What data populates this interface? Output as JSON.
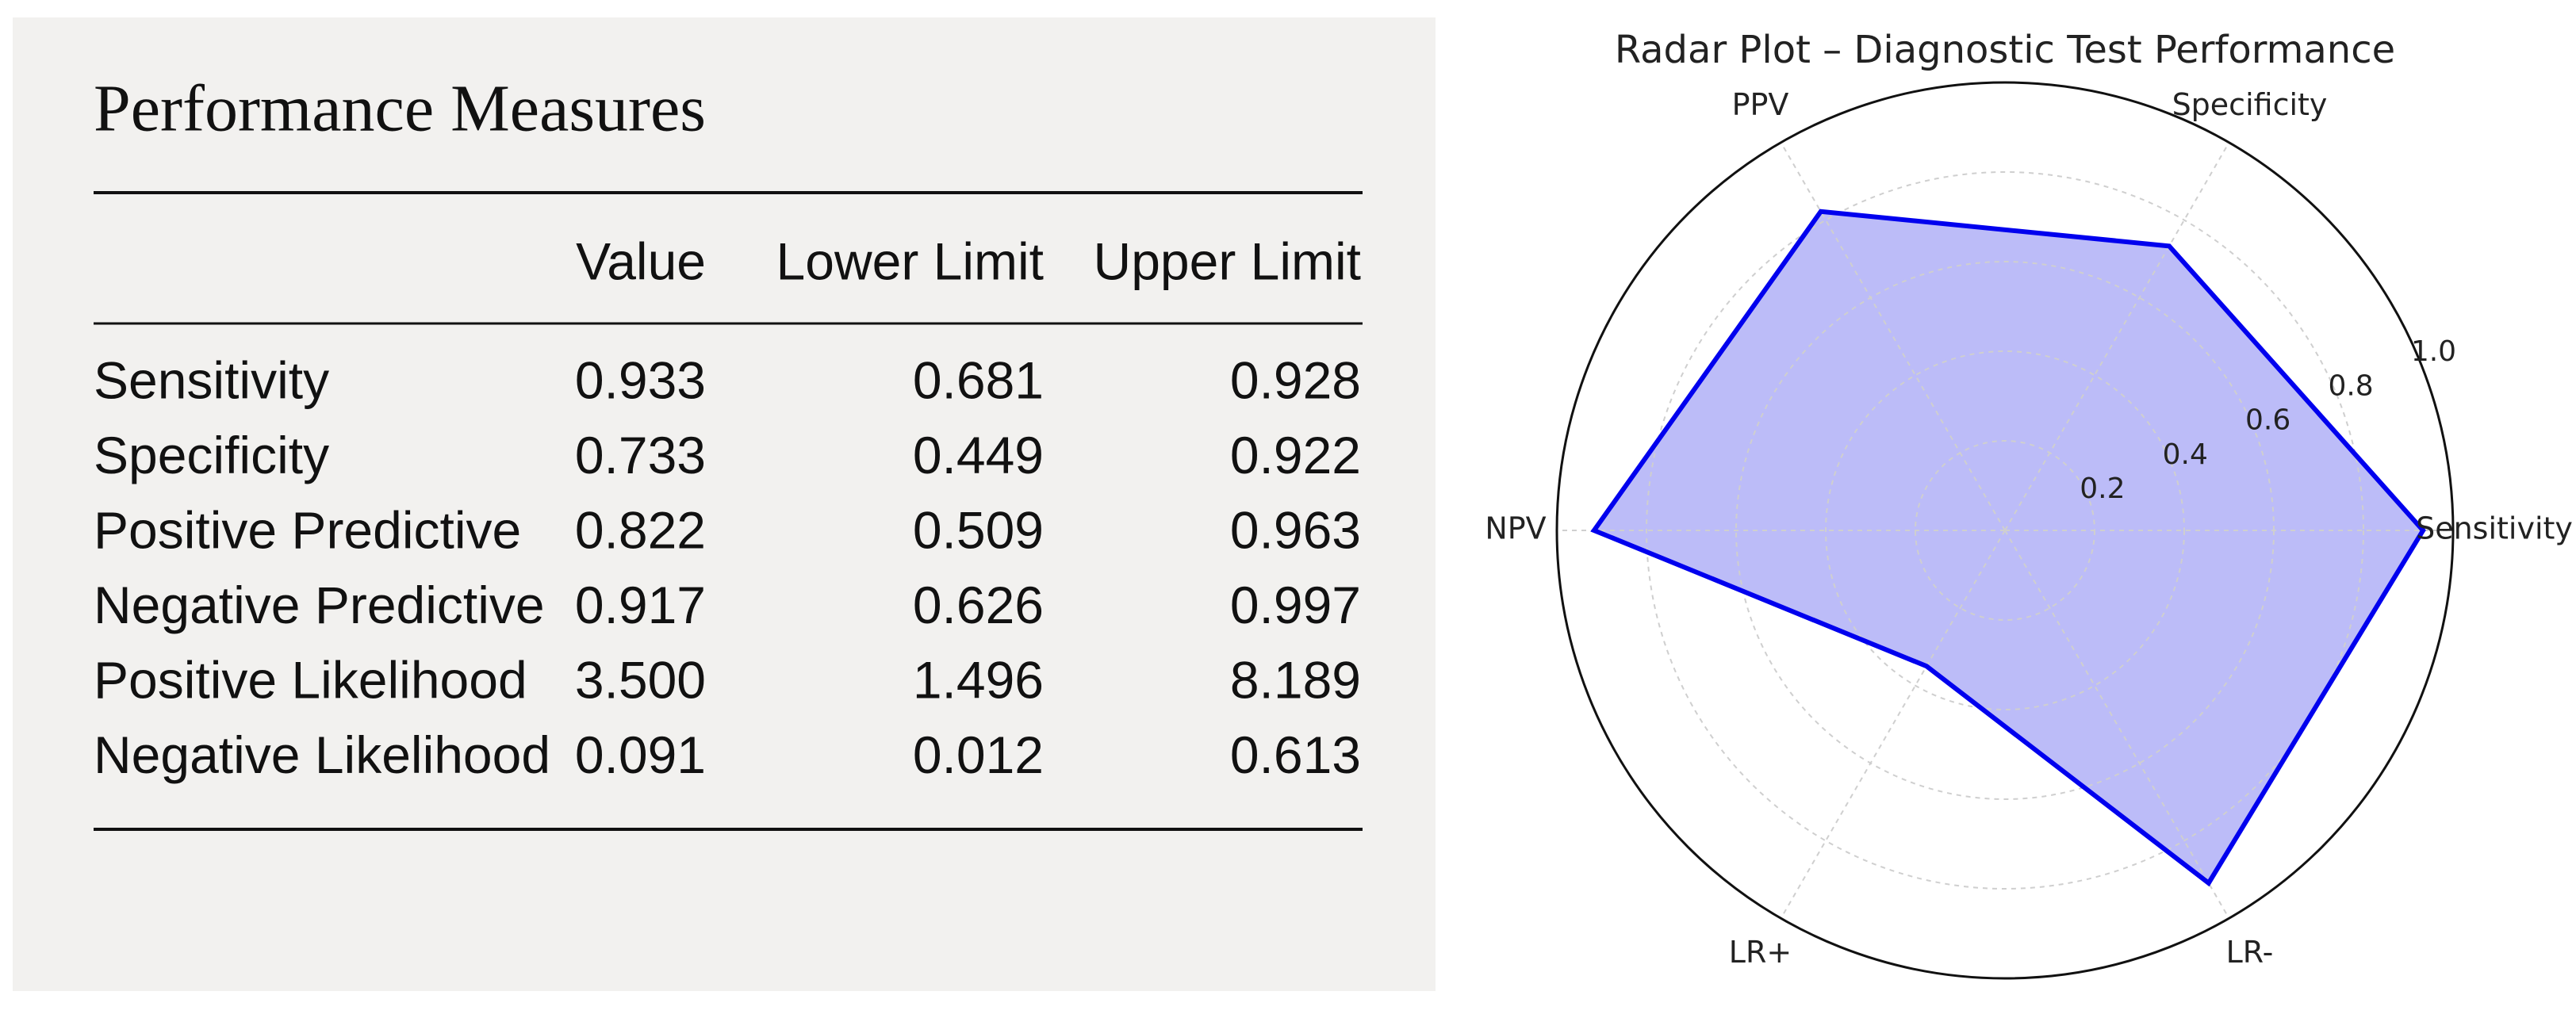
{
  "header": {
    "title": "Performance Measures"
  },
  "table": {
    "columns": [
      "Value",
      "Lower Limit",
      "Upper Limit"
    ],
    "rows": [
      [
        "Sensitivity",
        "0.933",
        "0.681",
        "0.928"
      ],
      [
        "Specificity",
        "0.733",
        "0.449",
        "0.922"
      ],
      [
        "Positive Predictive",
        "0.822",
        "0.509",
        "0.963"
      ],
      [
        "Negative Predictive",
        "0.917",
        "0.626",
        "0.997"
      ],
      [
        "Positive Likelihood",
        "3.500",
        "1.496",
        "8.189"
      ],
      [
        "Negative Likelihood",
        "0.091",
        "0.012",
        "0.613"
      ]
    ]
  },
  "chart_data": {
    "type": "radar",
    "title": "Radar Plot – Diagnostic Test Performance",
    "categories": [
      "Sensitivity",
      "Specificity",
      "PPV",
      "NPV",
      "LR+",
      "LR-"
    ],
    "values": [
      0.933,
      0.733,
      0.822,
      0.917,
      0.35,
      0.909
    ],
    "color": "#0000ee",
    "fill_color": "#bcbcf8",
    "ylim": [
      0,
      1
    ],
    "yticks": [
      0.2,
      0.4,
      0.6,
      0.8,
      {
        "value": 1,
        "label": "1.0"
      }
    ],
    "grid": true
  }
}
